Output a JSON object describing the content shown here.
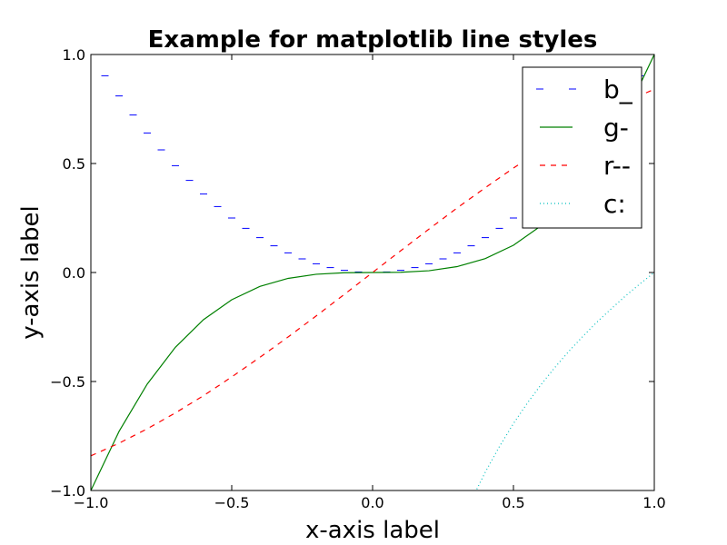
{
  "chart_data": {
    "type": "line",
    "title": "Example for matplotlib line styles",
    "xlabel": "x-axis label",
    "ylabel": "y-axis label",
    "xlim": [
      -1.0,
      1.0
    ],
    "ylim": [
      -1.0,
      1.0
    ],
    "grid": false,
    "legend_position": "top-right",
    "x_ticks": [
      -1.0,
      -0.5,
      0.0,
      0.5,
      1.0
    ],
    "y_ticks": [
      -1.0,
      -0.5,
      0.0,
      0.5,
      1.0
    ],
    "x_tick_labels": [
      "−1.0",
      "−0.5",
      "0.0",
      "0.5",
      "1.0"
    ],
    "y_tick_labels": [
      "−1.0",
      "−0.5",
      "0.0",
      "0.5",
      "1.0"
    ],
    "series": [
      {
        "name": "b_",
        "color": "#0000ff",
        "style": "underscore-markers",
        "x": [
          -0.95,
          -0.9,
          -0.85,
          -0.8,
          -0.75,
          -0.7,
          -0.65,
          -0.6,
          -0.55,
          -0.5,
          -0.45,
          -0.4,
          -0.35,
          -0.3,
          -0.25,
          -0.2,
          -0.15,
          -0.1,
          -0.05,
          0.0,
          0.05,
          0.1,
          0.15,
          0.2,
          0.25,
          0.3,
          0.35,
          0.4,
          0.45,
          0.5,
          0.55,
          0.6,
          0.65,
          0.7,
          0.75,
          0.8,
          0.85,
          0.9,
          0.95
        ],
        "y": [
          0.9025,
          0.81,
          0.7225,
          0.64,
          0.5625,
          0.49,
          0.4225,
          0.36,
          0.3025,
          0.25,
          0.2025,
          0.16,
          0.1225,
          0.09,
          0.0625,
          0.04,
          0.0225,
          0.01,
          0.0025,
          0.0,
          0.0025,
          0.01,
          0.0225,
          0.04,
          0.0625,
          0.09,
          0.1225,
          0.16,
          0.2025,
          0.25,
          0.3025,
          0.36,
          0.4225,
          0.49,
          0.5625,
          0.64,
          0.7225,
          0.81,
          0.9025
        ]
      },
      {
        "name": "g-",
        "color": "#008000",
        "style": "solid",
        "x": [
          -1.0,
          -0.9,
          -0.8,
          -0.7,
          -0.6,
          -0.5,
          -0.4,
          -0.3,
          -0.2,
          -0.1,
          0.0,
          0.1,
          0.2,
          0.3,
          0.4,
          0.5,
          0.6,
          0.7,
          0.8,
          0.9,
          1.0
        ],
        "y": [
          -1.0,
          -0.729,
          -0.512,
          -0.343,
          -0.216,
          -0.125,
          -0.064,
          -0.027,
          -0.008,
          -0.001,
          0.0,
          0.001,
          0.008,
          0.027,
          0.064,
          0.125,
          0.216,
          0.343,
          0.512,
          0.729,
          1.0
        ]
      },
      {
        "name": "r--",
        "color": "#ff0000",
        "style": "dashed",
        "x": [
          -1.0,
          -0.9,
          -0.8,
          -0.7,
          -0.6,
          -0.5,
          -0.4,
          -0.3,
          -0.2,
          -0.1,
          0.0,
          0.1,
          0.2,
          0.3,
          0.4,
          0.5,
          0.6,
          0.7,
          0.8,
          0.9,
          1.0
        ],
        "y": [
          -0.841,
          -0.783,
          -0.717,
          -0.644,
          -0.565,
          -0.479,
          -0.389,
          -0.296,
          -0.199,
          -0.1,
          0.0,
          0.1,
          0.199,
          0.296,
          0.389,
          0.479,
          0.565,
          0.644,
          0.717,
          0.783,
          0.841
        ]
      },
      {
        "name": "c:",
        "color": "#00bfbf",
        "style": "dotted",
        "x": [
          0.37,
          0.4,
          0.45,
          0.5,
          0.55,
          0.6,
          0.65,
          0.7,
          0.75,
          0.8,
          0.85,
          0.9,
          0.95,
          1.0
        ],
        "y": [
          -0.994,
          -0.916,
          -0.799,
          -0.693,
          -0.598,
          -0.511,
          -0.431,
          -0.357,
          -0.288,
          -0.223,
          -0.163,
          -0.105,
          -0.051,
          0.0
        ]
      }
    ]
  }
}
